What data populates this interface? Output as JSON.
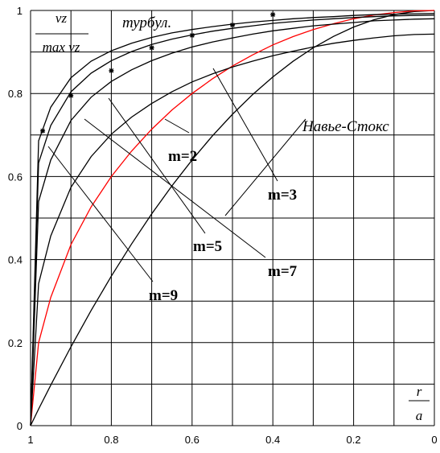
{
  "chart_data": {
    "type": "line",
    "title": "",
    "ylabel": "v_z / max v_z",
    "xlabel": "r / a",
    "ylabel_parts": {
      "num": "vz",
      "den": "max vz"
    },
    "xlabel_parts": {
      "num": "r",
      "den": "a"
    },
    "xlim": [
      1,
      0
    ],
    "ylim": [
      0,
      1
    ],
    "x_ticks": [
      "1",
      "0.8",
      "0.6",
      "0.4",
      "0.2",
      "0"
    ],
    "y_ticks": [
      "0",
      "0.2",
      "0.4",
      "0.6",
      "0.8",
      "1"
    ],
    "grid": true,
    "x": [
      1.0,
      0.98,
      0.95,
      0.9,
      0.85,
      0.8,
      0.75,
      0.7,
      0.65,
      0.6,
      0.55,
      0.5,
      0.45,
      0.4,
      0.35,
      0.3,
      0.25,
      0.2,
      0.15,
      0.1,
      0.05,
      0.0
    ],
    "series": [
      {
        "name": "Навье-Стокс",
        "color": "#000000",
        "values": [
          0.0,
          0.04,
          0.0975,
          0.19,
          0.2775,
          0.36,
          0.4375,
          0.51,
          0.5775,
          0.64,
          0.6975,
          0.75,
          0.7975,
          0.84,
          0.8775,
          0.91,
          0.9375,
          0.96,
          0.9775,
          0.99,
          0.9975,
          1.0
        ]
      },
      {
        "name": "m=2",
        "color": "#ff0000",
        "values": [
          0.0,
          0.2,
          0.309,
          0.436,
          0.527,
          0.6,
          0.661,
          0.714,
          0.76,
          0.8,
          0.835,
          0.866,
          0.893,
          0.917,
          0.937,
          0.954,
          0.968,
          0.98,
          0.989,
          0.995,
          0.999,
          1.0
        ]
      },
      {
        "name": "m=3",
        "color": "#000000",
        "values": [
          0.0,
          0.342,
          0.457,
          0.574,
          0.648,
          0.702,
          0.743,
          0.776,
          0.804,
          0.828,
          0.847,
          0.864,
          0.878,
          0.891,
          0.902,
          0.912,
          0.921,
          0.928,
          0.934,
          0.939,
          0.942,
          0.943
        ]
      },
      {
        "name": "m=5",
        "color": "#000000",
        "values": [
          0.0,
          0.54,
          0.64,
          0.735,
          0.791,
          0.829,
          0.857,
          0.879,
          0.897,
          0.912,
          0.924,
          0.934,
          0.943,
          0.951,
          0.957,
          0.963,
          0.967,
          0.971,
          0.975,
          0.977,
          0.979,
          0.98
        ]
      },
      {
        "name": "m=7",
        "color": "#000000",
        "values": [
          0.0,
          0.633,
          0.723,
          0.804,
          0.849,
          0.879,
          0.901,
          0.918,
          0.931,
          0.941,
          0.95,
          0.957,
          0.963,
          0.969,
          0.973,
          0.977,
          0.98,
          0.983,
          0.985,
          0.987,
          0.988,
          0.989
        ]
      },
      {
        "name": "m=9",
        "color": "#000000",
        "values": [
          0.0,
          0.686,
          0.767,
          0.838,
          0.878,
          0.903,
          0.921,
          0.935,
          0.946,
          0.954,
          0.961,
          0.967,
          0.972,
          0.976,
          0.98,
          0.983,
          0.985,
          0.988,
          0.99,
          0.991,
          0.992,
          0.993
        ]
      }
    ],
    "turbulent": {
      "name": "турбул.",
      "x": [
        0.97,
        0.9,
        0.8,
        0.7,
        0.6,
        0.5,
        0.4
      ],
      "y": [
        0.71,
        0.795,
        0.855,
        0.91,
        0.94,
        0.965,
        0.99
      ]
    },
    "annotations": [
      {
        "text": "турбул.",
        "type": "title"
      },
      {
        "text": "Навье-Стокс",
        "type": "series"
      },
      {
        "text": "m=2",
        "type": "m"
      },
      {
        "text": "m=3",
        "type": "m"
      },
      {
        "text": "m=5",
        "type": "m"
      },
      {
        "text": "m=7",
        "type": "m"
      },
      {
        "text": "m=9",
        "type": "m"
      }
    ]
  }
}
